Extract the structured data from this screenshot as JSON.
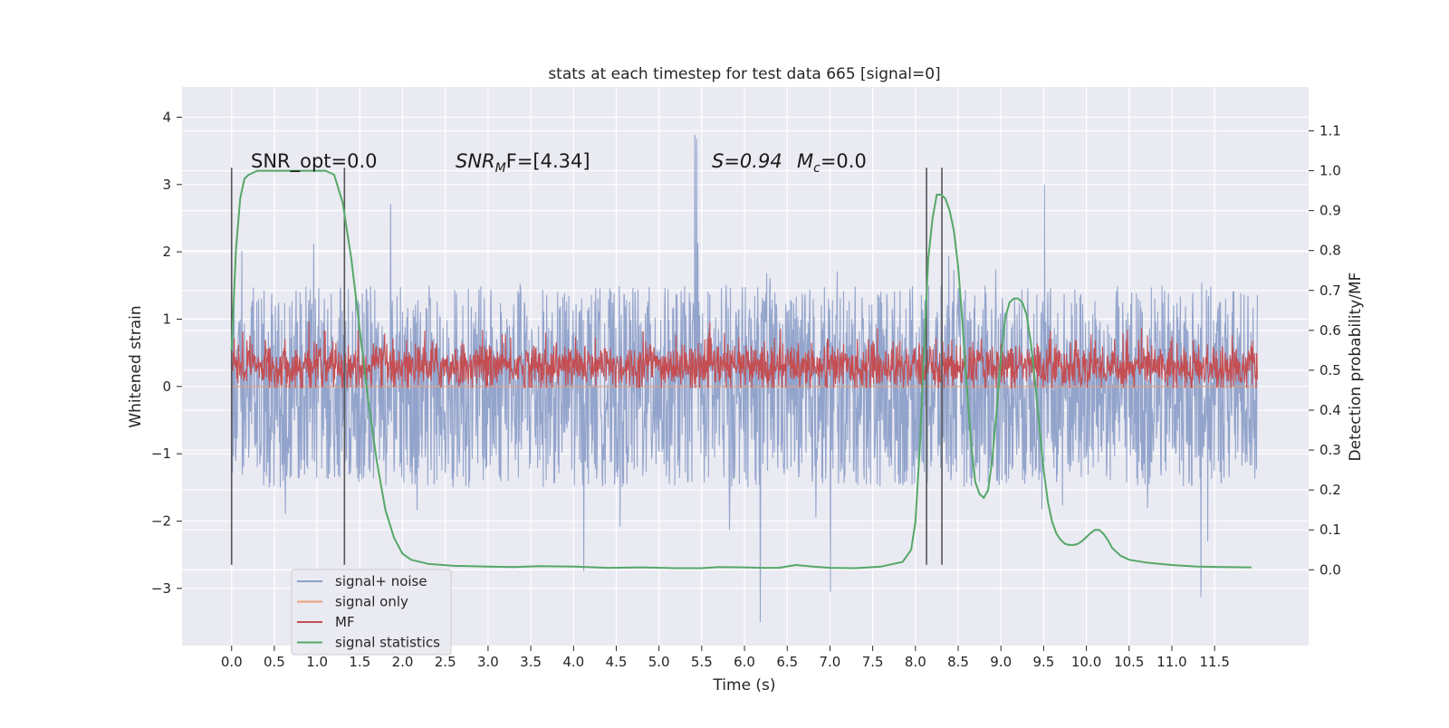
{
  "chart_data": {
    "type": "line",
    "title": "stats at each timestep for test data 665 [signal=0]",
    "xlabel": "Time (s)",
    "ylabel": "Whitened strain",
    "y2label": "Detection probability/MF",
    "xlim": [
      -0.58,
      12.6
    ],
    "ylim": [
      -3.85,
      4.45
    ],
    "y2lim": [
      -0.19,
      1.21
    ],
    "x_ticks": [
      0.0,
      0.5,
      1.0,
      1.5,
      2.0,
      2.5,
      3.0,
      3.5,
      4.0,
      4.5,
      5.0,
      5.5,
      6.0,
      6.5,
      7.0,
      7.5,
      8.0,
      8.5,
      9.0,
      9.5,
      10.0,
      10.5,
      11.0,
      11.5
    ],
    "x_tick_labels": [
      "0.0",
      "0.5",
      "1.0",
      "1.5",
      "2.0",
      "2.5",
      "3.0",
      "3.5",
      "4.0",
      "4.5",
      "5.0",
      "5.5",
      "6.0",
      "6.5",
      "7.0",
      "7.5",
      "8.0",
      "8.5",
      "9.0",
      "9.5",
      "10.0",
      "10.5",
      "11.0",
      "11.5"
    ],
    "y_ticks": [
      -3,
      -2,
      -1,
      0,
      1,
      2,
      3,
      4
    ],
    "y_tick_labels": [
      "−3",
      "−2",
      "−1",
      "0",
      "1",
      "2",
      "3",
      "4"
    ],
    "y2_ticks": [
      0.0,
      0.1,
      0.2,
      0.3,
      0.4,
      0.5,
      0.6,
      0.7,
      0.8,
      0.9,
      1.0,
      1.1
    ],
    "y2_tick_labels": [
      "0.0",
      "0.1",
      "0.2",
      "0.3",
      "0.4",
      "0.5",
      "0.6",
      "0.7",
      "0.8",
      "0.9",
      "1.0",
      "1.1"
    ],
    "grid": true,
    "legend_position": "lower-left",
    "annotations": [
      {
        "text": "SNR_opt=0.0",
        "italic": false
      },
      {
        "text": "SNR",
        "sub": "M",
        "rest": "F=[4.34]",
        "italic": true
      },
      {
        "text": "S=0.94",
        "italic": true
      },
      {
        "text": "M",
        "sub": "c",
        "rest": "=0.0",
        "italic": true
      }
    ],
    "vertical_lines_x": [
      0.0,
      1.32,
      8.13,
      8.31
    ],
    "vertical_lines_range": [
      -2.65,
      3.25
    ],
    "series": [
      {
        "name": "signal+ noise",
        "color": "#8ea0c9",
        "axis": "left",
        "x_range": [
          0.0,
          12.0
        ],
        "typical_band": [
          -1.5,
          1.5
        ],
        "spike_range": [
          -3.5,
          4.1
        ]
      },
      {
        "name": "signal only",
        "color": "#e8a07a",
        "axis": "left",
        "x_range": [
          0.0,
          12.0
        ],
        "constant": 0.0
      },
      {
        "name": "MF",
        "color": "#c44e52",
        "axis": "left",
        "x_range": [
          0.0,
          12.0
        ],
        "typical_band": [
          0.0,
          0.8
        ]
      },
      {
        "name": "signal statistics",
        "color": "#55a868",
        "axis": "right",
        "x": [
          0.0,
          0.05,
          0.1,
          0.15,
          0.2,
          0.3,
          0.5,
          0.7,
          0.9,
          1.0,
          1.1,
          1.2,
          1.3,
          1.4,
          1.5,
          1.6,
          1.7,
          1.8,
          1.9,
          2.0,
          2.1,
          2.3,
          2.6,
          3.0,
          3.3,
          3.6,
          4.0,
          4.4,
          4.8,
          5.2,
          5.5,
          5.7,
          6.0,
          6.2,
          6.4,
          6.6,
          6.8,
          7.0,
          7.3,
          7.6,
          7.85,
          7.95,
          8.0,
          8.05,
          8.1,
          8.15,
          8.2,
          8.25,
          8.3,
          8.35,
          8.4,
          8.45,
          8.5,
          8.55,
          8.6,
          8.65,
          8.7,
          8.75,
          8.8,
          8.85,
          8.9,
          8.95,
          9.0,
          9.05,
          9.1,
          9.15,
          9.2,
          9.25,
          9.3,
          9.35,
          9.4,
          9.45,
          9.5,
          9.55,
          9.6,
          9.65,
          9.7,
          9.75,
          9.8,
          9.85,
          9.9,
          9.95,
          10.0,
          10.05,
          10.1,
          10.15,
          10.2,
          10.25,
          10.3,
          10.4,
          10.5,
          10.7,
          11.0,
          11.3,
          11.6,
          11.93
        ],
        "values": [
          0.55,
          0.8,
          0.93,
          0.98,
          0.99,
          1.0,
          1.0,
          1.0,
          1.0,
          1.0,
          1.0,
          0.99,
          0.92,
          0.78,
          0.6,
          0.42,
          0.27,
          0.15,
          0.08,
          0.04,
          0.025,
          0.015,
          0.01,
          0.008,
          0.007,
          0.009,
          0.008,
          0.005,
          0.006,
          0.004,
          0.004,
          0.007,
          0.006,
          0.005,
          0.005,
          0.012,
          0.008,
          0.005,
          0.004,
          0.008,
          0.02,
          0.05,
          0.12,
          0.3,
          0.55,
          0.78,
          0.88,
          0.94,
          0.94,
          0.93,
          0.9,
          0.85,
          0.76,
          0.62,
          0.46,
          0.32,
          0.22,
          0.19,
          0.18,
          0.2,
          0.28,
          0.4,
          0.53,
          0.63,
          0.67,
          0.68,
          0.68,
          0.67,
          0.64,
          0.57,
          0.47,
          0.36,
          0.25,
          0.17,
          0.12,
          0.09,
          0.075,
          0.065,
          0.062,
          0.062,
          0.065,
          0.072,
          0.082,
          0.092,
          0.1,
          0.1,
          0.09,
          0.075,
          0.055,
          0.035,
          0.025,
          0.018,
          0.012,
          0.008,
          0.007,
          0.006
        ]
      }
    ]
  }
}
